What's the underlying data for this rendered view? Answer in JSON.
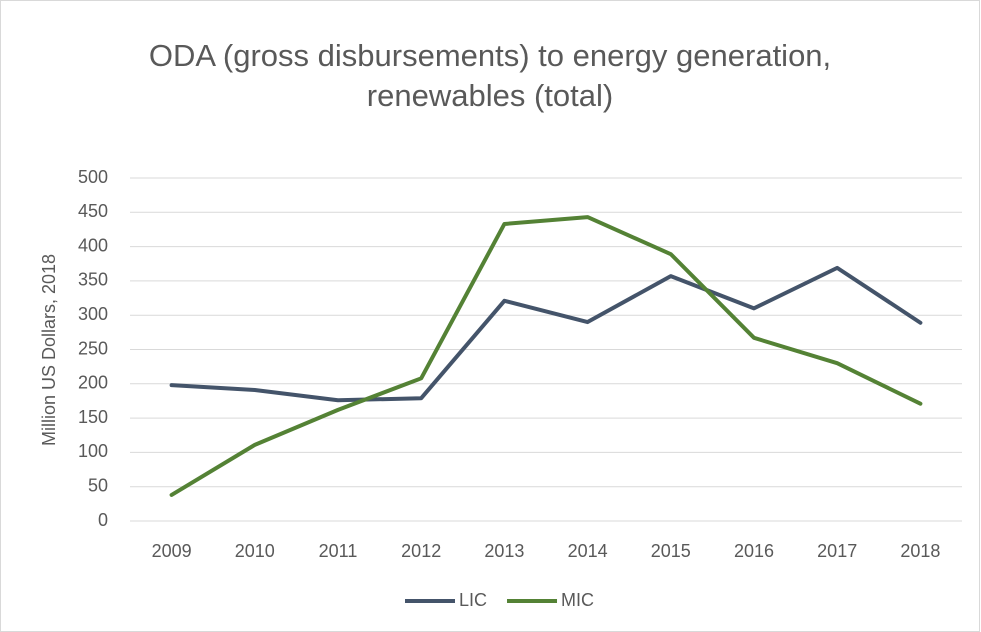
{
  "chart_data": {
    "type": "line",
    "title": "ODA (gross disbursements) to energy generation, renewables (total)",
    "y_label": "Million US Dollars, 2018",
    "categories": [
      "2009",
      "2010",
      "2011",
      "2012",
      "2013",
      "2014",
      "2015",
      "2016",
      "2017",
      "2018"
    ],
    "series": [
      {
        "name": "LIC",
        "color": "#44546a",
        "values": [
          198,
          191,
          176,
          179,
          321,
          290,
          357,
          310,
          369,
          289
        ]
      },
      {
        "name": "MIC",
        "color": "#548235",
        "values": [
          38,
          111,
          162,
          208,
          433,
          443,
          389,
          267,
          230,
          171
        ]
      }
    ],
    "ylim": [
      0,
      500
    ],
    "yticks": [
      0,
      50,
      100,
      150,
      200,
      250,
      300,
      350,
      400,
      450,
      500
    ],
    "grid": true,
    "legend": "bottom"
  }
}
